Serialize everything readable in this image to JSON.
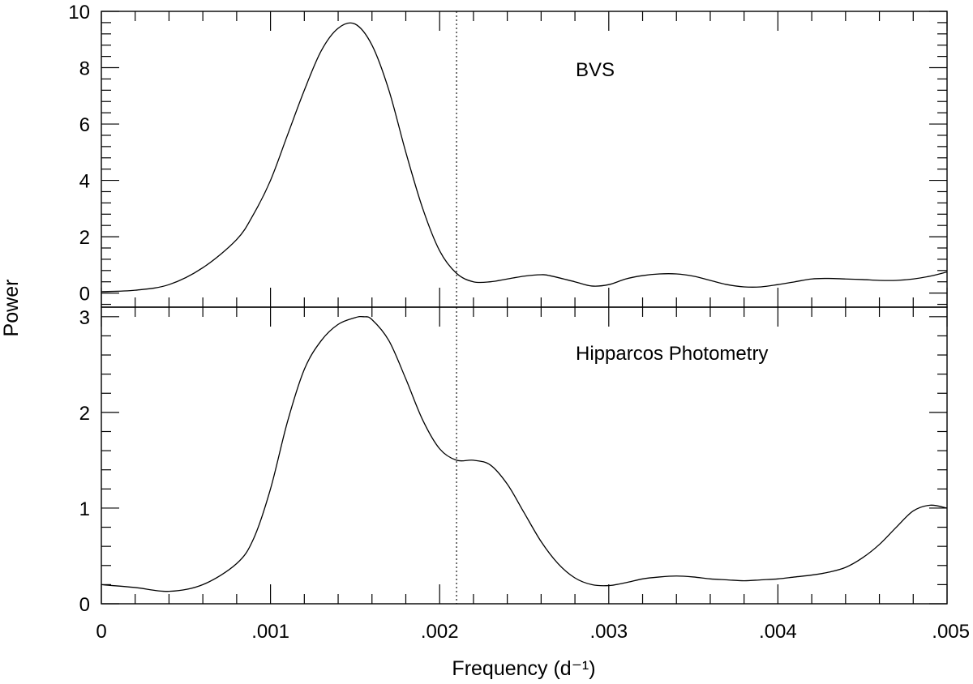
{
  "chart_data": [
    {
      "type": "line",
      "panel": "top",
      "annotation": "BVS",
      "ylabel": "Power",
      "xlabel": "Frequency (d⁻¹)",
      "xlim": [
        0,
        0.005
      ],
      "ylim": [
        -0.5,
        10.0
      ],
      "yticks": [
        "0",
        "2",
        "4",
        "6",
        "8",
        "10"
      ],
      "ytick_values": [
        0,
        2,
        4,
        6,
        8,
        10
      ],
      "grid": false,
      "vertical_marker_x": 0.0021,
      "series": [
        {
          "x": [
            0,
            0.0002,
            0.0004,
            0.0006,
            0.0008,
            0.0009,
            0.001,
            0.0011,
            0.0012,
            0.0013,
            0.0014,
            0.0015,
            0.0016,
            0.0017,
            0.0018,
            0.0019,
            0.002,
            0.0021,
            0.0022,
            0.0023,
            0.0024,
            0.0025,
            0.0026,
            0.00265,
            0.0028,
            0.0029,
            0.003,
            0.0031,
            0.0032,
            0.0033,
            0.0034,
            0.0035,
            0.0036,
            0.0037,
            0.0038,
            0.0039,
            0.004,
            0.0041,
            0.0042,
            0.0043,
            0.0044,
            0.0045,
            0.0046,
            0.0047,
            0.0048,
            0.0049,
            0.005
          ],
          "y": [
            0.05,
            0.1,
            0.3,
            0.9,
            1.9,
            2.8,
            4.0,
            5.6,
            7.2,
            8.6,
            9.4,
            9.55,
            8.8,
            7.2,
            5.0,
            3.0,
            1.5,
            0.7,
            0.4,
            0.4,
            0.5,
            0.6,
            0.65,
            0.62,
            0.4,
            0.25,
            0.3,
            0.5,
            0.62,
            0.68,
            0.68,
            0.6,
            0.45,
            0.3,
            0.22,
            0.22,
            0.3,
            0.4,
            0.5,
            0.52,
            0.5,
            0.48,
            0.45,
            0.45,
            0.5,
            0.6,
            0.75
          ]
        }
      ]
    },
    {
      "type": "line",
      "panel": "bottom",
      "annotation": "Hipparcos Photometry",
      "ylabel": "Power",
      "xlabel": "Frequency (d⁻¹)",
      "xlim": [
        0,
        0.005
      ],
      "ylim": [
        0,
        3.1
      ],
      "yticks": [
        "0",
        "1",
        "2",
        "3"
      ],
      "ytick_values": [
        0,
        1,
        2,
        3
      ],
      "xticks": [
        "0",
        ".001",
        ".002",
        ".003",
        ".004",
        ".005"
      ],
      "xtick_values": [
        0,
        0.001,
        0.002,
        0.003,
        0.004,
        0.005
      ],
      "grid": false,
      "vertical_marker_x": 0.0021,
      "series": [
        {
          "x": [
            0,
            0.0002,
            0.0004,
            0.0006,
            0.0008,
            0.0009,
            0.001,
            0.0011,
            0.0012,
            0.0013,
            0.0014,
            0.0015,
            0.00155,
            0.0016,
            0.0017,
            0.0018,
            0.0019,
            0.002,
            0.0021,
            0.0022,
            0.0023,
            0.0024,
            0.0025,
            0.0026,
            0.0027,
            0.0028,
            0.0029,
            0.003,
            0.0031,
            0.0032,
            0.0033,
            0.0034,
            0.0035,
            0.0036,
            0.0037,
            0.0038,
            0.0039,
            0.004,
            0.0041,
            0.0042,
            0.0043,
            0.0044,
            0.0045,
            0.0046,
            0.0047,
            0.0048,
            0.0049,
            0.005
          ],
          "y": [
            0.2,
            0.17,
            0.13,
            0.2,
            0.42,
            0.68,
            1.2,
            1.9,
            2.45,
            2.75,
            2.92,
            2.99,
            3.0,
            2.97,
            2.75,
            2.35,
            1.92,
            1.62,
            1.5,
            1.5,
            1.45,
            1.25,
            0.95,
            0.65,
            0.42,
            0.27,
            0.2,
            0.19,
            0.22,
            0.26,
            0.28,
            0.29,
            0.28,
            0.26,
            0.25,
            0.24,
            0.25,
            0.26,
            0.28,
            0.3,
            0.33,
            0.38,
            0.48,
            0.62,
            0.8,
            0.97,
            1.03,
            1.0
          ]
        }
      ]
    }
  ]
}
